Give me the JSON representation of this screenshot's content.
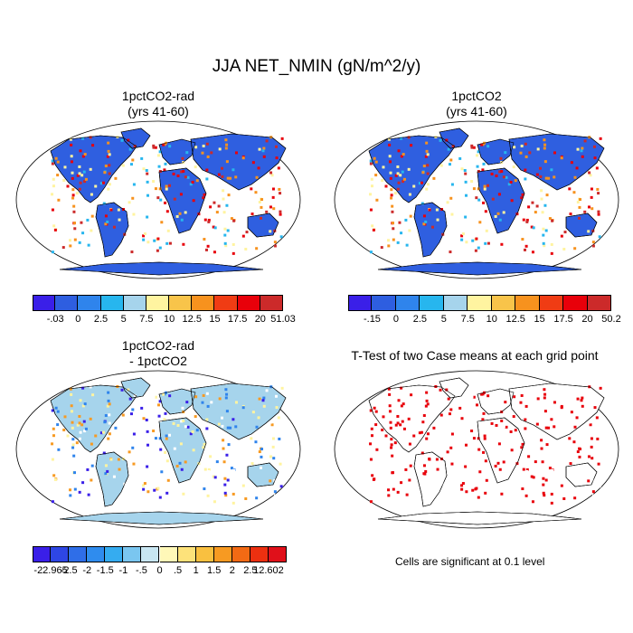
{
  "title": "JJA NET_NMIN (gN/m^2/y)",
  "panels": {
    "top_left": {
      "title_line1": "1pctCO2-rad",
      "title_line2": "(yrs 41-60)"
    },
    "top_right": {
      "title_line1": "1pctCO2",
      "title_line2": "(yrs 41-60)"
    },
    "bottom_left": {
      "title_line1": "1pctCO2-rad",
      "title_line2": "- 1pctCO2"
    },
    "bottom_right": {
      "title_line1": "T-Test of two Case means at each grid point",
      "note": "Cells are significant at 0.1 level"
    }
  },
  "colorbars": {
    "top_left": {
      "colors": [
        "#3a1fe8",
        "#2e5ee0",
        "#2f84ec",
        "#27b6ee",
        "#a6d4ec",
        "#fff4a0",
        "#f8c44a",
        "#f7921e",
        "#f03c14",
        "#e8000a",
        "#cc2a2a"
      ],
      "labels": [
        "-.03",
        "0",
        "2.5",
        "5",
        "7.5",
        "10",
        "12.5",
        "15",
        "17.5",
        "20",
        "51.03"
      ]
    },
    "top_right": {
      "colors": [
        "#3a1fe8",
        "#2e5ee0",
        "#2f84ec",
        "#27b6ee",
        "#a6d4ec",
        "#fff4a0",
        "#f8c44a",
        "#f7921e",
        "#f03c14",
        "#e8000a",
        "#cc2a2a"
      ],
      "labels": [
        "-.15",
        "0",
        "2.5",
        "5",
        "7.5",
        "10",
        "12.5",
        "15",
        "17.5",
        "20",
        "50.2"
      ]
    },
    "bottom_left": {
      "colors": [
        "#3a1fe8",
        "#2e46e4",
        "#2f6ee8",
        "#2f8cee",
        "#35acf0",
        "#7ac6f0",
        "#c8e6f2",
        "#fff8b8",
        "#fde27a",
        "#f9c040",
        "#f79a22",
        "#f26a14",
        "#ec3010",
        "#e0101a"
      ],
      "labels": [
        "-22.965",
        "-2.5",
        "-2",
        "-1.5",
        "-1",
        "-.5",
        "0",
        ".5",
        "1",
        "1.5",
        "2",
        "2.5",
        "12.602"
      ]
    }
  },
  "map_fills": {
    "top_left": "#2f5fe0",
    "top_right": "#2f5fe0",
    "bottom_left": "#a6d4ec",
    "bottom_right": "#e8000a"
  }
}
